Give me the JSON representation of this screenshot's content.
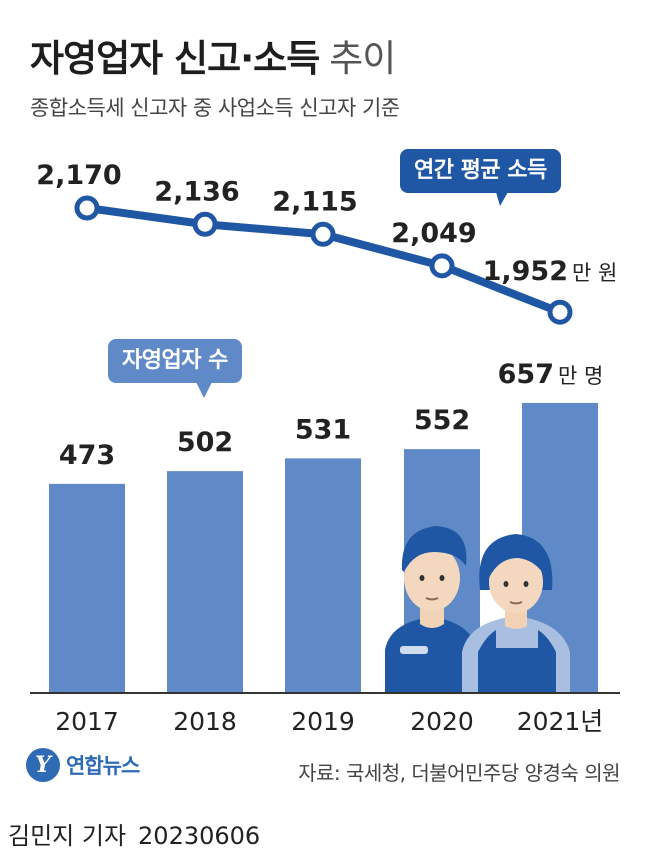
{
  "header": {
    "title_bold": "자영업자 신고·소득",
    "title_light": "추이",
    "subtitle": "종합소득세 신고자 중 사업소득 신고자 기준"
  },
  "chart_data": {
    "type": "bar+line",
    "categories": [
      "2017",
      "2018",
      "2019",
      "2020",
      "2021년"
    ],
    "line_series": {
      "name": "연간 평균 소득",
      "values": [
        2170,
        2136,
        2115,
        2049,
        1952
      ],
      "value_labels": [
        "2,170",
        "2,136",
        "2,115",
        "2,049",
        "1,952"
      ],
      "unit": "만 원",
      "color": "#1f57a4"
    },
    "bar_series": {
      "name": "자영업자 수",
      "values": [
        473,
        502,
        531,
        552,
        657
      ],
      "value_labels": [
        "473",
        "502",
        "531",
        "552",
        "657"
      ],
      "unit": "만 명",
      "color": "#5f8ac7"
    }
  },
  "footer": {
    "source": "자료: 국세청, 더불어민주당 양경숙 의원",
    "agency": "연합뉴스",
    "logo_glyph": "Y",
    "reporter": "김민지 기자",
    "date": "20230606"
  }
}
